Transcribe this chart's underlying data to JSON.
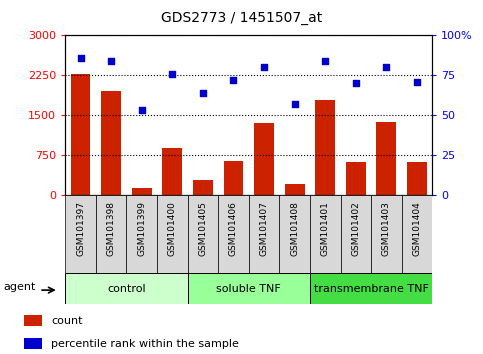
{
  "title": "GDS2773 / 1451507_at",
  "samples": [
    "GSM101397",
    "GSM101398",
    "GSM101399",
    "GSM101400",
    "GSM101405",
    "GSM101406",
    "GSM101407",
    "GSM101408",
    "GSM101401",
    "GSM101402",
    "GSM101403",
    "GSM101404"
  ],
  "counts": [
    2270,
    1950,
    120,
    880,
    270,
    640,
    1350,
    210,
    1780,
    610,
    1360,
    620
  ],
  "percentiles": [
    86,
    84,
    53,
    76,
    64,
    72,
    80,
    57,
    84,
    70,
    80,
    71
  ],
  "bar_color": "#cc2200",
  "dot_color": "#0000cc",
  "ylim_left": [
    0,
    3000
  ],
  "ylim_right": [
    0,
    100
  ],
  "yticks_left": [
    0,
    750,
    1500,
    2250,
    3000
  ],
  "yticks_right": [
    0,
    25,
    50,
    75,
    100
  ],
  "yticklabels_right": [
    "0",
    "25",
    "50",
    "75",
    "100%"
  ],
  "groups": [
    {
      "label": "control",
      "start": 0,
      "end": 4,
      "color": "#ccffcc"
    },
    {
      "label": "soluble TNF",
      "start": 4,
      "end": 8,
      "color": "#99ff99"
    },
    {
      "label": "transmembrane TNF",
      "start": 8,
      "end": 12,
      "color": "#44dd44"
    }
  ],
  "agent_label": "agent",
  "legend": [
    {
      "label": "count",
      "color": "#cc2200"
    },
    {
      "label": "percentile rank within the sample",
      "color": "#0000cc"
    }
  ],
  "cell_color": "#d8d8d8",
  "plot_bg": "#ffffff"
}
